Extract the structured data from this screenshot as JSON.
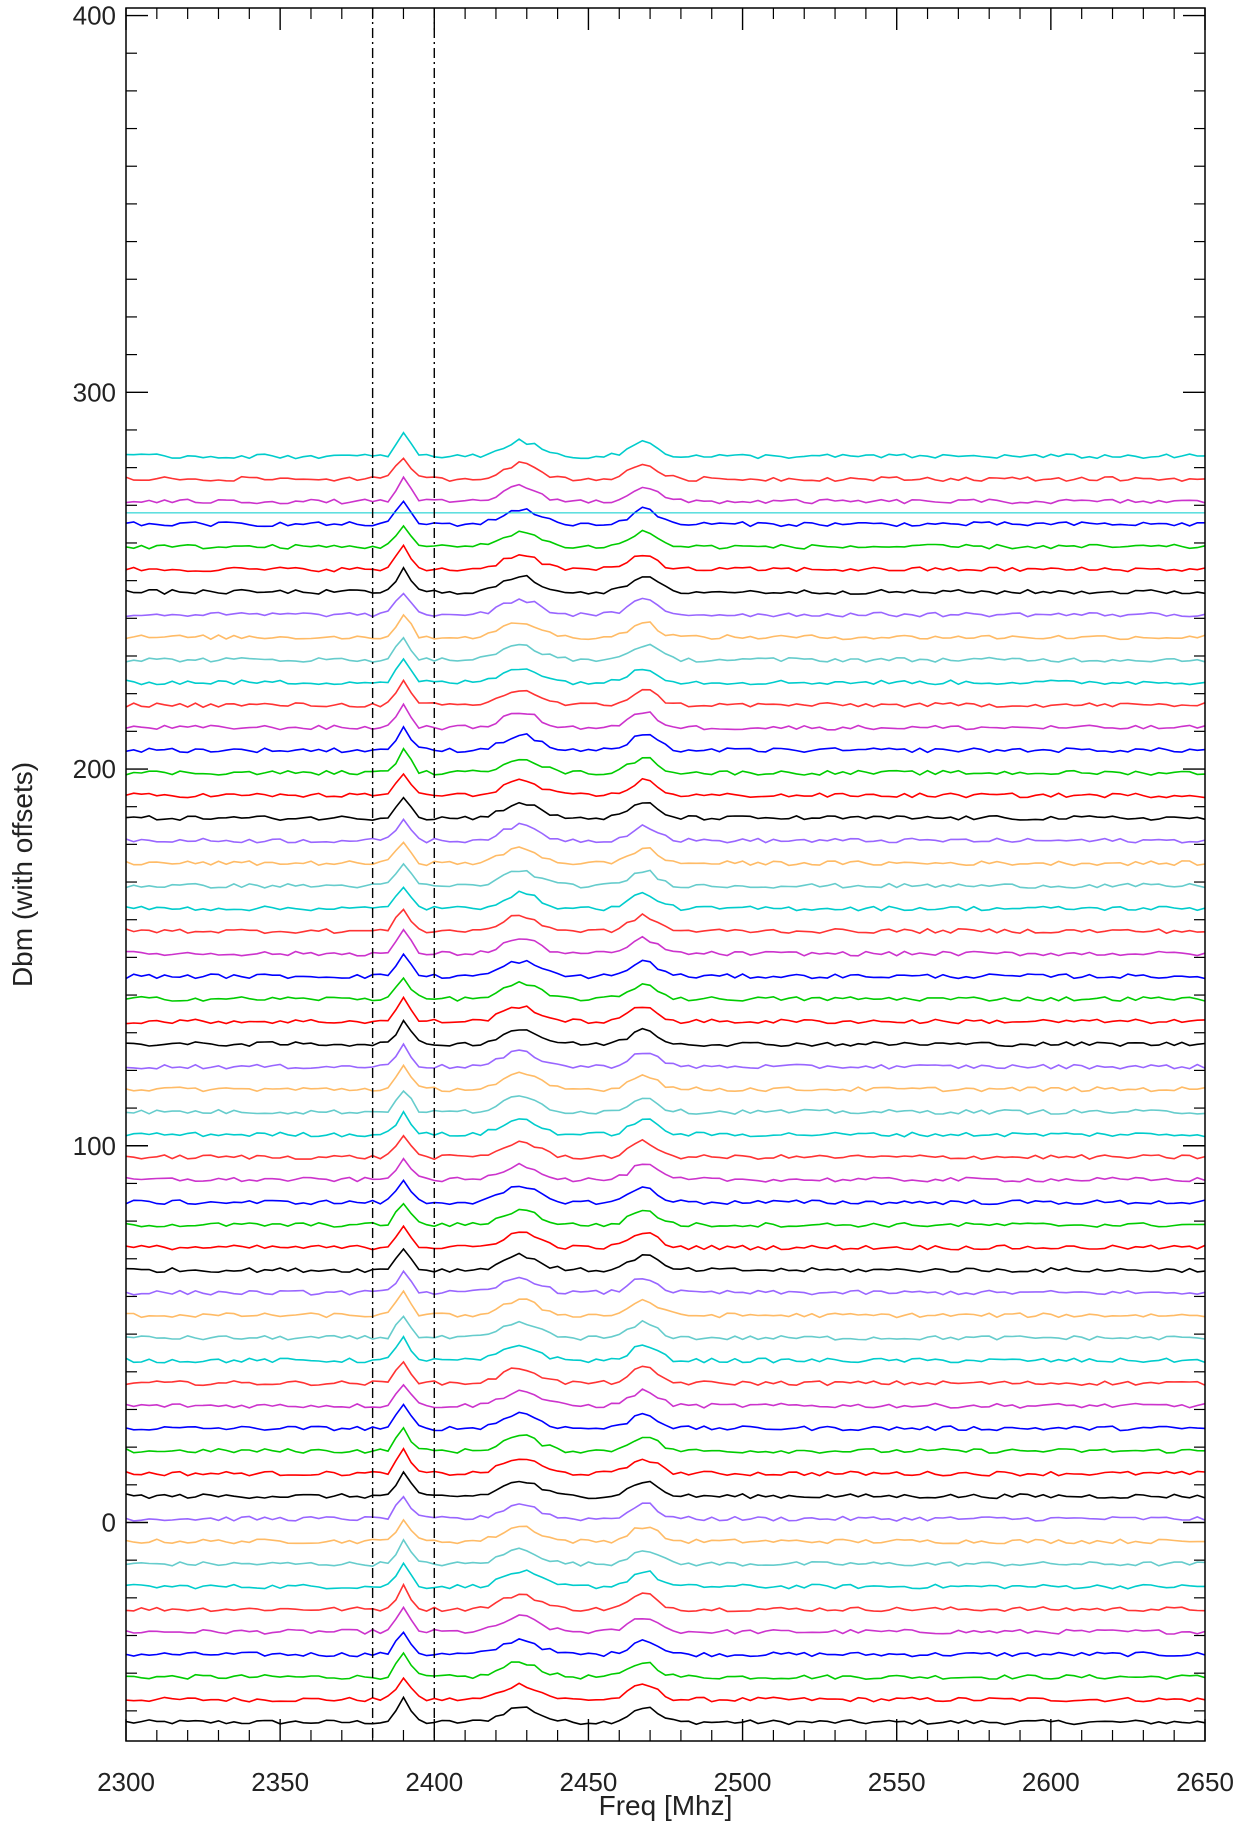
{
  "chart_data": {
    "type": "line",
    "title": "",
    "xlabel": "Freq [Mhz]",
    "ylabel": "Dbm (with offsets)",
    "xlim": [
      2300,
      2650
    ],
    "ylim": [
      -58,
      402
    ],
    "x_ticks": [
      2300,
      2350,
      2400,
      2450,
      2500,
      2550,
      2600,
      2650
    ],
    "x_tick_labels": [
      "2300",
      "2350",
      "2400",
      "2450",
      "2500",
      "2550",
      "2600",
      "2650"
    ],
    "y_ticks": [
      0,
      100,
      200,
      300,
      400
    ],
    "y_tick_labels": [
      "0",
      "100",
      "200",
      "300",
      "400"
    ],
    "grid": false,
    "legend": "none",
    "vertical_markers": [
      {
        "x": 2380,
        "style": "dash-dot"
      },
      {
        "x": 2400,
        "style": "dash-dot"
      }
    ],
    "horizontal_reference": {
      "y": 268,
      "color": "#00cccc"
    },
    "color_cycle": [
      "#000000",
      "#ff0000",
      "#00cc00",
      "#0000ff",
      "#cc33cc",
      "#ff3333",
      "#00cccc",
      "#66cccc",
      "#ffbb66",
      "#9966ff"
    ],
    "series_baselines": [
      -53,
      -47,
      -41,
      -35,
      -29,
      -23,
      -17,
      -11,
      -5,
      1,
      7,
      13,
      19,
      25,
      31,
      37,
      43,
      49,
      55,
      61,
      67,
      73,
      79,
      85,
      91,
      97,
      103,
      109,
      115,
      121,
      127,
      133,
      139,
      145,
      151,
      157,
      163,
      169,
      175,
      181,
      187,
      193,
      199,
      205,
      211,
      217,
      223,
      229,
      235,
      241,
      247,
      253,
      259,
      265,
      271,
      277,
      283
    ],
    "freq_step_mhz": 2.5,
    "peak_shape": [
      {
        "x": 2390,
        "height": 6,
        "width": 3
      },
      {
        "x": 2428,
        "height": 4,
        "width": 8
      },
      {
        "x": 2468,
        "height": 4,
        "width": 6
      }
    ],
    "noise_amplitude_dbm": 0.6
  }
}
